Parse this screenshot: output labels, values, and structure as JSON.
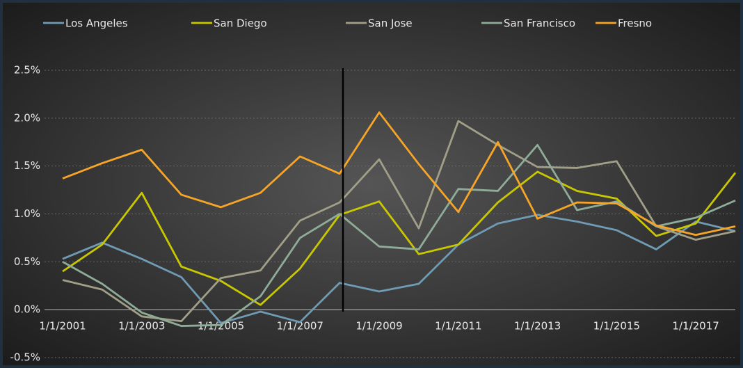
{
  "chart_data": {
    "type": "line",
    "categories": [
      "1/1/2001",
      null,
      "1/1/2003",
      null,
      "1/1/2005",
      null,
      "1/1/2007",
      null,
      "1/1/2009",
      null,
      "1/1/2011",
      null,
      "1/1/2013",
      null,
      "1/1/2015",
      null,
      "1/1/2017",
      null
    ],
    "series": [
      {
        "name": "Los Angeles",
        "color": "#6f9bb5",
        "values": [
          0.53,
          0.7,
          0.53,
          0.34,
          -0.14,
          -0.02,
          -0.13,
          0.28,
          0.19,
          0.27,
          0.68,
          0.9,
          0.99,
          0.92,
          0.83,
          0.63,
          0.92,
          0.82
        ]
      },
      {
        "name": "San Diego",
        "color": "#c9c800",
        "values": [
          0.4,
          0.68,
          1.22,
          0.45,
          0.3,
          0.05,
          0.43,
          0.99,
          1.13,
          0.58,
          0.68,
          1.12,
          1.44,
          1.24,
          1.16,
          0.77,
          0.9,
          1.43
        ]
      },
      {
        "name": "San Jose",
        "color": "#a19f87",
        "values": [
          0.31,
          0.21,
          -0.07,
          -0.12,
          0.33,
          0.41,
          0.93,
          1.12,
          1.57,
          0.85,
          1.97,
          1.72,
          1.49,
          1.48,
          1.55,
          0.87,
          0.73,
          0.82
        ]
      },
      {
        "name": "San Francisco",
        "color": "#8fac99",
        "values": [
          0.5,
          0.27,
          -0.03,
          -0.17,
          -0.16,
          0.14,
          0.75,
          1.0,
          0.66,
          0.63,
          1.26,
          1.24,
          1.72,
          1.04,
          1.13,
          0.87,
          0.96,
          1.14
        ]
      },
      {
        "name": "Fresno",
        "color": "#f7a526",
        "values": [
          1.37,
          1.53,
          1.67,
          1.2,
          1.07,
          1.22,
          1.6,
          1.42,
          2.06,
          1.52,
          1.02,
          1.75,
          0.95,
          1.12,
          1.11,
          0.88,
          0.78,
          0.87
        ]
      }
    ],
    "ylim": [
      -0.5,
      2.5
    ],
    "yticks": [
      {
        "value": -0.5,
        "label": "-0.5%"
      },
      {
        "value": 0,
        "label": "0.0%"
      },
      {
        "value": 0.5,
        "label": "0.5%"
      },
      {
        "value": 1,
        "label": "1.0%"
      },
      {
        "value": 1.5,
        "label": "1.5%"
      },
      {
        "value": 2,
        "label": "2.0%"
      },
      {
        "value": 2.5,
        "label": "2.5%"
      }
    ],
    "grid": true,
    "legend": "top"
  }
}
